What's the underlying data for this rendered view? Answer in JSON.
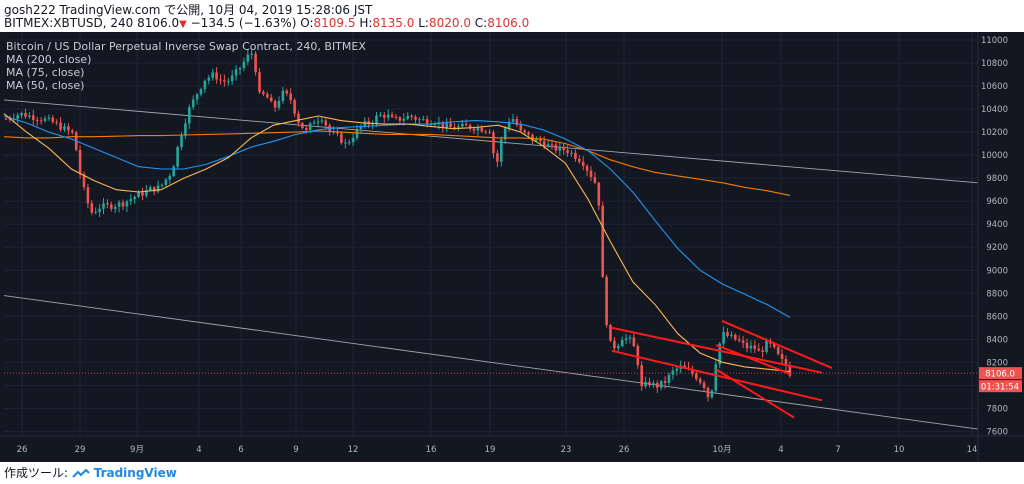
{
  "header": {
    "line1": "gosh222 TradingView.com で公開, 10月 04, 2019 15:28:06 JST",
    "symbol_prefix": "BITMEX:XBTUSD, 240",
    "last": "8106.0",
    "down_arrow": "▼",
    "change": "−134.5 (−1.63%)",
    "o_label": "O:",
    "o_value": "8109.5",
    "h_label": "H:",
    "h_value": "8135.0",
    "l_label": "L:",
    "l_value": "8020.0",
    "c_label": "C:",
    "c_value": "8106.0"
  },
  "legend": {
    "title": "Bitcoin / US Dollar Perpetual Inverse Swap Contract, 240, BITMEX",
    "ma200": "MA (200, close)",
    "ma75": "MA (75, close)",
    "ma50": "MA (50, close)"
  },
  "price_tag": {
    "price": "8106.0",
    "countdown": "01:31:54"
  },
  "footer": {
    "made_with": "作成ツール:",
    "brand": "TradingView"
  },
  "colors": {
    "background": "#131722",
    "up": "#26a69a",
    "down": "#ef5350",
    "ma200": "#f57c00",
    "ma75": "#2196f3",
    "ma50": "#ffb74d",
    "trend": "#d1d4dc",
    "channel": "#ff1a1a"
  },
  "chart_data": {
    "type": "candlestick",
    "title": "Bitcoin / US Dollar Perpetual Inverse Swap Contract, 240, BITMEX",
    "x_ticks": [
      "26",
      "29",
      "9月",
      "4",
      "6",
      "9",
      "12",
      "16",
      "19",
      "23",
      "26",
      "10月",
      "4",
      "7",
      "10",
      "14"
    ],
    "y_ticks": [
      7600,
      7800,
      8000,
      8200,
      8400,
      8600,
      8800,
      9000,
      9200,
      9400,
      9600,
      9800,
      10000,
      10200,
      10400,
      10600,
      10800,
      11000
    ],
    "ylim": [
      7560,
      11070
    ],
    "ma200_values": [
      10160,
      10150,
      10150,
      10160,
      10160,
      10165,
      10170,
      10170,
      10175,
      10180,
      10185,
      10190,
      10195,
      10200,
      10210,
      10200,
      10190,
      10180,
      10180,
      10180,
      10170,
      10160,
      10150,
      10150,
      10140,
      10100,
      10040,
      9960,
      9900,
      9850,
      9820,
      9790,
      9760,
      9720,
      9690,
      9650
    ],
    "ma75_values": [
      10340,
      10280,
      10200,
      10140,
      10060,
      9980,
      9900,
      9880,
      9880,
      9920,
      9990,
      10070,
      10120,
      10180,
      10220,
      10240,
      10250,
      10260,
      10270,
      10270,
      10290,
      10300,
      10290,
      10270,
      10220,
      10140,
      10040,
      9880,
      9680,
      9430,
      9190,
      9000,
      8880,
      8790,
      8700,
      8590
    ],
    "ma50_values": [
      10360,
      10200,
      10060,
      9880,
      9780,
      9700,
      9680,
      9700,
      9800,
      9880,
      9980,
      10150,
      10260,
      10300,
      10340,
      10300,
      10280,
      10270,
      10270,
      10250,
      10230,
      10240,
      10260,
      10200,
      10080,
      9930,
      9620,
      9250,
      8900,
      8700,
      8450,
      8280,
      8200,
      8160,
      8140,
      8120
    ],
    "trendlines": [
      {
        "from": [
          "start",
          10480
        ],
        "to": [
          "end",
          9760
        ],
        "label": ""
      },
      {
        "from": [
          "start",
          8780
        ],
        "to": [
          "end",
          7620
        ],
        "label": ""
      }
    ],
    "channel_lines": [
      {
        "from": [
          8500
        ],
        "to": [
          8110
        ]
      },
      {
        "from": [
          8300
        ],
        "to": [
          7870
        ]
      },
      {
        "from": [
          8140
        ],
        "to": [
          7720
        ]
      },
      {
        "from": [
          8560
        ],
        "to": [
          8150
        ]
      },
      {
        "from": [
          8350
        ],
        "to": [
          8100
        ]
      }
    ],
    "last_price": 8106.0
  }
}
